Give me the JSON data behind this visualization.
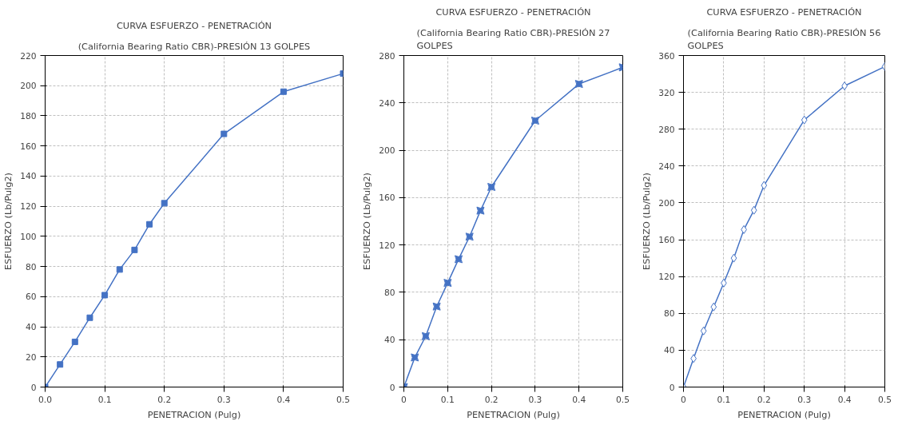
{
  "chart_data": [
    {
      "type": "line",
      "title": "CURVA ESFUERZO - PENETRACIÓN",
      "subtitle": "(California Bearing Ratio CBR)-PRESIÓN 13 GOLPES",
      "xlabel": "PENETRACION (Pulg)",
      "ylabel": "ESFUERZO (Lb/Pulg2)",
      "x": [
        0,
        0.025,
        0.05,
        0.075,
        0.1,
        0.125,
        0.15,
        0.175,
        0.2,
        0.3,
        0.4,
        0.5
      ],
      "series": [
        {
          "color": "#4472c4",
          "values": [
            0,
            15,
            30,
            46,
            61,
            78,
            91,
            108,
            122,
            168,
            196,
            208
          ]
        }
      ],
      "xlim": [
        0,
        0.5
      ],
      "xticks": [
        {
          "value": 0,
          "label": "0.0"
        },
        0.1,
        0.2,
        0.3,
        0.4,
        0.5
      ],
      "ylim": [
        0,
        220
      ],
      "yticks": [
        0,
        20,
        40,
        60,
        80,
        100,
        120,
        140,
        160,
        180,
        200,
        220
      ],
      "grid": true,
      "marker": "square",
      "line_style": "solid"
    },
    {
      "type": "line",
      "title": "CURVA ESFUERZO - PENETRACIÓN",
      "subtitle": "(California Bearing Ratio CBR)-PRESIÓN 27 GOLPES",
      "xlabel": "PENETRACION (Pulg)",
      "ylabel": "ESFUERZO (Lb/Pulg2)",
      "x": [
        0,
        0.025,
        0.05,
        0.075,
        0.1,
        0.125,
        0.15,
        0.175,
        0.2,
        0.3,
        0.4,
        0.5
      ],
      "series": [
        {
          "color": "#4472c4",
          "values": [
            0,
            25,
            43,
            68,
            88,
            108,
            127,
            149,
            169,
            225,
            256,
            270
          ]
        }
      ],
      "xlim": [
        0,
        0.5
      ],
      "xticks": [
        0,
        0.1,
        0.2,
        0.3,
        0.4,
        0.5
      ],
      "ylim": [
        0,
        280
      ],
      "yticks": [
        0,
        40,
        80,
        120,
        160,
        200,
        240,
        280
      ],
      "grid": true,
      "marker": "cross",
      "line_style": "solid"
    },
    {
      "type": "line",
      "title": "CURVA ESFUERZO - PENETRACIÓN",
      "subtitle": "(California Bearing Ratio CBR)-PRESIÓN 56 GOLPES",
      "xlabel": "PENETRACION (Pulg)",
      "ylabel": "ESFUERZO (Lb/Pulg2)",
      "x": [
        0,
        0.025,
        0.05,
        0.075,
        0.1,
        0.125,
        0.15,
        0.175,
        0.2,
        0.3,
        0.4,
        0.5
      ],
      "series": [
        {
          "color": "#4472c4",
          "values": [
            0,
            31,
            61,
            87,
            113,
            140,
            171,
            192,
            219,
            290,
            327,
            348
          ]
        }
      ],
      "xlim": [
        0,
        0.5
      ],
      "xticks": [
        0,
        0.1,
        0.2,
        0.3,
        0.4,
        0.5
      ],
      "ylim": [
        0,
        360
      ],
      "yticks": [
        0,
        40,
        80,
        120,
        160,
        200,
        240,
        280,
        320,
        360
      ],
      "grid": true,
      "marker": "diamond",
      "line_style": "solid"
    }
  ]
}
